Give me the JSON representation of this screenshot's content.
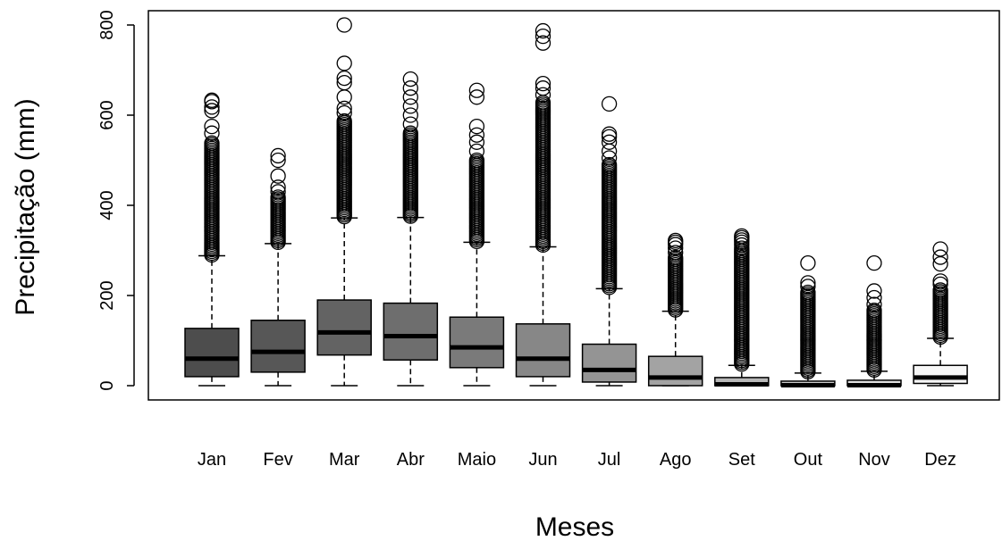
{
  "chart_data": {
    "type": "box",
    "title": "",
    "xlabel": "Meses",
    "ylabel": "Precipitação (mm)",
    "ylim": [
      -30,
      830
    ],
    "yticks": [
      0,
      200,
      400,
      600,
      800
    ],
    "grid": false,
    "legend": "none",
    "categories": [
      "Jan",
      "Fev",
      "Mar",
      "Abr",
      "Maio",
      "Jun",
      "Jul",
      "Ago",
      "Set",
      "Out",
      "Nov",
      "Dez"
    ],
    "boxes": [
      {
        "min": 0,
        "q1": 20,
        "median": 60,
        "q3": 127,
        "whisker_high": 288,
        "outlier_low": 290,
        "outlier_high": 540,
        "extra_outliers": [
          560,
          575,
          610,
          618,
          630,
          633
        ],
        "fill": "#4d4d4d"
      },
      {
        "min": 0,
        "q1": 30,
        "median": 75,
        "q3": 145,
        "whisker_high": 315,
        "outlier_low": 318,
        "outlier_high": 420,
        "extra_outliers": [
          430,
          440,
          465,
          500,
          510
        ],
        "fill": "#575757"
      },
      {
        "min": 0,
        "q1": 68,
        "median": 118,
        "q3": 190,
        "whisker_high": 372,
        "outlier_low": 375,
        "outlier_high": 590,
        "extra_outliers": [
          605,
          615,
          640,
          672,
          682,
          715,
          800
        ],
        "fill": "#636363"
      },
      {
        "min": 0,
        "q1": 57,
        "median": 110,
        "q3": 183,
        "whisker_high": 373,
        "outlier_low": 376,
        "outlier_high": 560,
        "extra_outliers": [
          580,
          600,
          620,
          640,
          660,
          680
        ],
        "fill": "#6e6e6e"
      },
      {
        "min": 0,
        "q1": 40,
        "median": 85,
        "q3": 152,
        "whisker_high": 318,
        "outlier_low": 320,
        "outlier_high": 500,
        "extra_outliers": [
          520,
          540,
          556,
          575,
          640,
          655
        ],
        "fill": "#7a7a7a"
      },
      {
        "min": 0,
        "q1": 20,
        "median": 60,
        "q3": 137,
        "whisker_high": 308,
        "outlier_low": 312,
        "outlier_high": 630,
        "extra_outliers": [
          645,
          660,
          670,
          760,
          775,
          787
        ],
        "fill": "#878787"
      },
      {
        "min": 0,
        "q1": 8,
        "median": 35,
        "q3": 92,
        "whisker_high": 215,
        "outlier_low": 218,
        "outlier_high": 490,
        "extra_outliers": [
          505,
          520,
          540,
          552,
          558,
          625
        ],
        "fill": "#949494"
      },
      {
        "min": 0,
        "q1": 0,
        "median": 18,
        "q3": 65,
        "whisker_high": 165,
        "outlier_low": 168,
        "outlier_high": 285,
        "extra_outliers": [
          295,
          305,
          313,
          318,
          322
        ],
        "fill": "#a3a3a3"
      },
      {
        "min": 0,
        "q1": 0,
        "median": 3,
        "q3": 18,
        "whisker_high": 45,
        "outlier_low": 48,
        "outlier_high": 300,
        "extra_outliers": [
          305,
          312,
          318,
          323,
          328,
          332
        ],
        "fill": "#b8b8b8"
      },
      {
        "min": 0,
        "q1": 0,
        "median": 1,
        "q3": 10,
        "whisker_high": 28,
        "outlier_low": 31,
        "outlier_high": 210,
        "extra_outliers": [
          220,
          228,
          272
        ],
        "fill": "#cccccc"
      },
      {
        "min": 0,
        "q1": 0,
        "median": 1,
        "q3": 12,
        "whisker_high": 32,
        "outlier_low": 35,
        "outlier_high": 170,
        "extra_outliers": [
          180,
          195,
          210,
          272
        ],
        "fill": "#e0e0e0"
      },
      {
        "min": 0,
        "q1": 5,
        "median": 18,
        "q3": 45,
        "whisker_high": 105,
        "outlier_low": 108,
        "outlier_high": 215,
        "extra_outliers": [
          225,
          232,
          270,
          285,
          303
        ],
        "fill": "#f7f7f7"
      }
    ]
  }
}
